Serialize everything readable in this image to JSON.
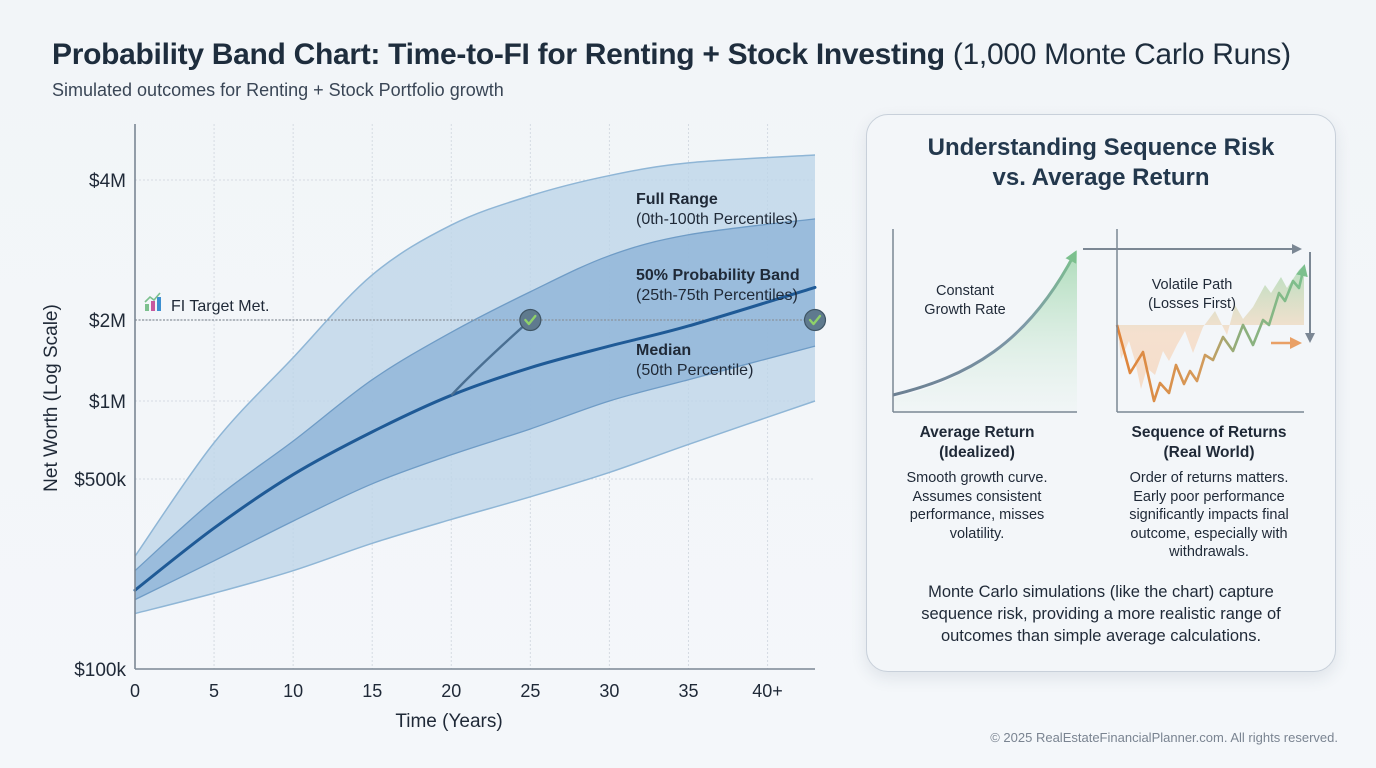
{
  "header": {
    "title_bold": "Probability Band Chart: Time-to-FI for Renting + Stock Investing",
    "title_light": "(1,000 Monte Carlo Runs)",
    "subtitle": "Simulated outcomes for Renting + Stock Portfolio growth"
  },
  "chart_data": {
    "type": "area",
    "title": "Probability Band Chart: Time-to-FI for Renting + Stock Investing (1,000 Monte Carlo Runs)",
    "subtitle": "Simulated outcomes for Renting + Stock Portfolio growth",
    "xlabel": "Time (Years)",
    "ylabel": "Net Worth (Log Scale)",
    "x_ticks": [
      {
        "value": 0,
        "label": "0"
      },
      {
        "value": 5,
        "label": "5"
      },
      {
        "value": 10,
        "label": "10"
      },
      {
        "value": 15,
        "label": "15"
      },
      {
        "value": 20,
        "label": "20"
      },
      {
        "value": 25,
        "label": "25"
      },
      {
        "value": 30,
        "label": "30"
      },
      {
        "value": 35,
        "label": "35"
      },
      {
        "value": 40,
        "label": "40+"
      }
    ],
    "y_ticks": [
      {
        "value": 100000,
        "label": "$100k"
      },
      {
        "value": 500000,
        "label": "$500k"
      },
      {
        "value": 1000000,
        "label": "$1M"
      },
      {
        "value": 2000000,
        "label": "$2M"
      },
      {
        "value": 4000000,
        "label": "$4M"
      }
    ],
    "xlim": [
      0,
      43
    ],
    "ylim": [
      100000,
      5000000
    ],
    "yscale": "log",
    "grid": true,
    "x": [
      0,
      5,
      10,
      15,
      20,
      25,
      30,
      35,
      43
    ],
    "series": [
      {
        "name": "Full Range upper (100th Percentile)",
        "role": "outer-upper",
        "values": [
          260000,
          690000,
          1450000,
          2500000,
          3200000,
          3700000,
          4100000,
          4400000,
          4600000
        ]
      },
      {
        "name": "75th Percentile",
        "role": "inner-upper",
        "values": [
          230000,
          420000,
          700000,
          1200000,
          1800000,
          2300000,
          2750000,
          3050000,
          3300000
        ]
      },
      {
        "name": "Median (50th Percentile)",
        "role": "median",
        "values": [
          195000,
          330000,
          520000,
          760000,
          1050000,
          1330000,
          1600000,
          1900000,
          2350000
        ]
      },
      {
        "name": "25th Percentile",
        "role": "inner-lower",
        "values": [
          180000,
          250000,
          350000,
          480000,
          620000,
          780000,
          1000000,
          1200000,
          1600000
        ]
      },
      {
        "name": "Full Range lower (0th Percentile)",
        "role": "outer-lower",
        "values": [
          160000,
          190000,
          230000,
          290000,
          355000,
          430000,
          530000,
          680000,
          1000000
        ]
      }
    ],
    "fast_path": {
      "name": "Early FI path",
      "x": [
        20,
        22,
        25
      ],
      "values": [
        1050000,
        1400000,
        2000000
      ]
    },
    "fi_target": {
      "value": 2000000,
      "label": "FI Target Met."
    },
    "fi_markers": [
      {
        "x": 25,
        "value": 2000000
      },
      {
        "x": 43,
        "value": 2000000
      }
    ],
    "annotations": [
      {
        "title": "Full Range",
        "detail": "(0th-100th Percentiles)"
      },
      {
        "title": "50% Probability Band",
        "detail": "(25th-75th Percentiles)"
      },
      {
        "title": "Median",
        "detail": "(50th Percentile)"
      }
    ],
    "colors": {
      "outer_band": "#bcd5e8",
      "inner_band": "#8fb4d8",
      "median": "#1f5a96",
      "marker": "#5f7a8e",
      "check": "#8fd16a"
    }
  },
  "panel": {
    "title_line1": "Understanding Sequence Risk",
    "title_line2": "vs. Average Return",
    "left": {
      "diagram_label_line1": "Constant",
      "diagram_label_line2": "Growth Rate",
      "heading_line1": "Average Return",
      "heading_line2": "(Idealized)",
      "body": [
        "Smooth growth curve.",
        "Assumes consistent",
        "performance, misses",
        "volatility."
      ]
    },
    "right": {
      "diagram_label_line1": "Volatile Path",
      "diagram_label_line2": "(Losses First)",
      "heading_line1": "Sequence of Returns",
      "heading_line2": "(Real World)",
      "body": [
        "Order of returns matters.",
        "Early poor performance",
        "significantly impacts final",
        "outcome, especially with",
        "withdrawals."
      ]
    },
    "summary": [
      "Monte Carlo simulations (like the chart) capture",
      "sequence risk, providing a more realistic range of",
      "outcomes than simple average calculations."
    ],
    "colors": {
      "green": "#7cc08e",
      "orange": "#e0843a",
      "axis": "#7b8794"
    }
  },
  "footer": {
    "copyright": "© 2025 RealEstateFinancialPlanner.com. All rights reserved."
  }
}
